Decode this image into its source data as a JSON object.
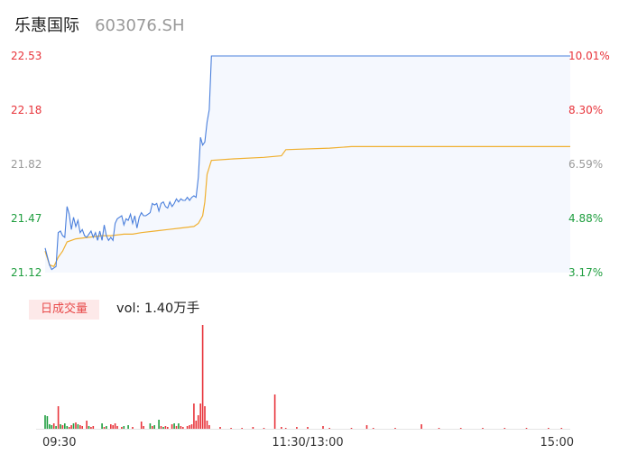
{
  "header": {
    "name": "乐惠国际",
    "code": "603076.SH"
  },
  "volume_badge": "日成交量",
  "volume_text": "vol: 1.40万手",
  "colors": {
    "price_line": "#4a7fdc",
    "avg_line": "#f0b030",
    "area_fill": "#f5f8fe",
    "up": "#e8333a",
    "down": "#1f9e3f",
    "neutral": "#999999"
  },
  "chart_data": {
    "type": "line",
    "title": "",
    "price_axis": {
      "ylim": [
        21.12,
        22.53
      ],
      "ticks": [
        "22.53",
        "22.18",
        "21.82",
        "21.47",
        "21.12"
      ],
      "tick_roles": [
        "up",
        "up",
        "neutral",
        "down",
        "down"
      ]
    },
    "percent_axis": {
      "ticks": [
        "10.01%",
        "8.30%",
        "6.59%",
        "4.88%",
        "3.17%"
      ],
      "tick_roles": [
        "up",
        "up",
        "neutral",
        "down",
        "down"
      ]
    },
    "time_axis": {
      "total_minutes": 240,
      "ticks": [
        {
          "label": "09:30",
          "minute": 0
        },
        {
          "label": "11:30/13:00",
          "minute": 120
        },
        {
          "label": "15:00",
          "minute": 240
        }
      ]
    },
    "price_series": [
      [
        0,
        21.28
      ],
      [
        2,
        21.17
      ],
      [
        3,
        21.14
      ],
      [
        5,
        21.16
      ],
      [
        6,
        21.38
      ],
      [
        7,
        21.39
      ],
      [
        8,
        21.36
      ],
      [
        9,
        21.35
      ],
      [
        10,
        21.55
      ],
      [
        11,
        21.5
      ],
      [
        12,
        21.4
      ],
      [
        13,
        21.48
      ],
      [
        14,
        21.42
      ],
      [
        15,
        21.46
      ],
      [
        16,
        21.38
      ],
      [
        17,
        21.4
      ],
      [
        18,
        21.36
      ],
      [
        19,
        21.35
      ],
      [
        20,
        21.37
      ],
      [
        21,
        21.39
      ],
      [
        22,
        21.35
      ],
      [
        23,
        21.38
      ],
      [
        24,
        21.33
      ],
      [
        25,
        21.39
      ],
      [
        26,
        21.33
      ],
      [
        27,
        21.43
      ],
      [
        28,
        21.36
      ],
      [
        29,
        21.33
      ],
      [
        30,
        21.35
      ],
      [
        31,
        21.33
      ],
      [
        32,
        21.44
      ],
      [
        33,
        21.47
      ],
      [
        34,
        21.48
      ],
      [
        35,
        21.49
      ],
      [
        36,
        21.43
      ],
      [
        37,
        21.47
      ],
      [
        38,
        21.46
      ],
      [
        39,
        21.5
      ],
      [
        40,
        21.44
      ],
      [
        41,
        21.49
      ],
      [
        42,
        21.41
      ],
      [
        43,
        21.48
      ],
      [
        44,
        21.51
      ],
      [
        45,
        21.49
      ],
      [
        46,
        21.49
      ],
      [
        47,
        21.5
      ],
      [
        48,
        21.51
      ],
      [
        49,
        21.57
      ],
      [
        50,
        21.56
      ],
      [
        51,
        21.57
      ],
      [
        52,
        21.52
      ],
      [
        53,
        21.57
      ],
      [
        54,
        21.58
      ],
      [
        55,
        21.55
      ],
      [
        56,
        21.54
      ],
      [
        57,
        21.58
      ],
      [
        58,
        21.55
      ],
      [
        59,
        21.57
      ],
      [
        60,
        21.6
      ],
      [
        61,
        21.58
      ],
      [
        62,
        21.6
      ],
      [
        63,
        21.59
      ],
      [
        64,
        21.59
      ],
      [
        65,
        21.61
      ],
      [
        66,
        21.59
      ],
      [
        67,
        21.61
      ],
      [
        68,
        21.62
      ],
      [
        69,
        21.61
      ],
      [
        70,
        21.74
      ],
      [
        71,
        22.0
      ],
      [
        72,
        21.95
      ],
      [
        73,
        21.97
      ],
      [
        74,
        22.1
      ],
      [
        75,
        22.18
      ],
      [
        76,
        22.53
      ],
      [
        100,
        22.53
      ],
      [
        130,
        22.53
      ],
      [
        160,
        22.53
      ],
      [
        200,
        22.53
      ],
      [
        240,
        22.53
      ]
    ],
    "avg_series": [
      [
        0,
        21.26
      ],
      [
        2,
        21.17
      ],
      [
        4,
        21.16
      ],
      [
        6,
        21.22
      ],
      [
        8,
        21.26
      ],
      [
        10,
        21.32
      ],
      [
        14,
        21.34
      ],
      [
        20,
        21.35
      ],
      [
        26,
        21.36
      ],
      [
        30,
        21.36
      ],
      [
        36,
        21.37
      ],
      [
        40,
        21.37
      ],
      [
        44,
        21.38
      ],
      [
        50,
        21.39
      ],
      [
        56,
        21.4
      ],
      [
        62,
        21.41
      ],
      [
        68,
        21.42
      ],
      [
        70,
        21.44
      ],
      [
        72,
        21.49
      ],
      [
        73,
        21.58
      ],
      [
        74,
        21.76
      ],
      [
        76,
        21.85
      ],
      [
        86,
        21.86
      ],
      [
        100,
        21.87
      ],
      [
        108,
        21.88
      ],
      [
        110,
        21.92
      ],
      [
        130,
        21.93
      ],
      [
        140,
        21.94
      ],
      [
        150,
        21.94
      ],
      [
        180,
        21.94
      ],
      [
        210,
        21.94
      ],
      [
        240,
        21.94
      ]
    ],
    "volume_series": {
      "ymax": 115,
      "bars": [
        [
          0,
          15,
          "down"
        ],
        [
          1,
          14,
          "down"
        ],
        [
          2,
          5,
          "down"
        ],
        [
          3,
          4,
          "down"
        ],
        [
          4,
          6,
          "up"
        ],
        [
          5,
          3,
          "down"
        ],
        [
          6,
          25,
          "up"
        ],
        [
          7,
          5,
          "down"
        ],
        [
          8,
          4,
          "up"
        ],
        [
          9,
          6,
          "down"
        ],
        [
          10,
          3,
          "down"
        ],
        [
          11,
          2,
          "up"
        ],
        [
          12,
          4,
          "up"
        ],
        [
          13,
          6,
          "down"
        ],
        [
          14,
          7,
          "up"
        ],
        [
          15,
          5,
          "down"
        ],
        [
          16,
          4,
          "up"
        ],
        [
          17,
          3,
          "up"
        ],
        [
          19,
          9,
          "up"
        ],
        [
          20,
          3,
          "down"
        ],
        [
          21,
          2,
          "up"
        ],
        [
          22,
          3,
          "up"
        ],
        [
          26,
          6,
          "down"
        ],
        [
          27,
          2,
          "up"
        ],
        [
          28,
          3,
          "down"
        ],
        [
          30,
          5,
          "up"
        ],
        [
          31,
          4,
          "up"
        ],
        [
          32,
          6,
          "up"
        ],
        [
          33,
          3,
          "up"
        ],
        [
          35,
          2,
          "up"
        ],
        [
          36,
          3,
          "down"
        ],
        [
          38,
          4,
          "down"
        ],
        [
          40,
          2,
          "up"
        ],
        [
          44,
          8,
          "up"
        ],
        [
          45,
          3,
          "up"
        ],
        [
          48,
          6,
          "down"
        ],
        [
          49,
          3,
          "up"
        ],
        [
          50,
          4,
          "down"
        ],
        [
          52,
          10,
          "down"
        ],
        [
          53,
          3,
          "up"
        ],
        [
          54,
          2,
          "down"
        ],
        [
          55,
          3,
          "up"
        ],
        [
          56,
          2,
          "up"
        ],
        [
          58,
          5,
          "up"
        ],
        [
          59,
          6,
          "down"
        ],
        [
          60,
          3,
          "up"
        ],
        [
          61,
          6,
          "down"
        ],
        [
          62,
          3,
          "up"
        ],
        [
          63,
          2,
          "up"
        ],
        [
          65,
          3,
          "up"
        ],
        [
          66,
          4,
          "up"
        ],
        [
          67,
          5,
          "up"
        ],
        [
          68,
          28,
          "up"
        ],
        [
          69,
          9,
          "up"
        ],
        [
          70,
          15,
          "up"
        ],
        [
          71,
          28,
          "up"
        ],
        [
          72,
          115,
          "up"
        ],
        [
          73,
          25,
          "up"
        ],
        [
          74,
          9,
          "up"
        ],
        [
          75,
          4,
          "up"
        ],
        [
          80,
          2,
          "up"
        ],
        [
          85,
          1,
          "up"
        ],
        [
          90,
          1,
          "up"
        ],
        [
          95,
          2,
          "up"
        ],
        [
          100,
          1,
          "up"
        ],
        [
          105,
          38,
          "up"
        ],
        [
          108,
          2,
          "up"
        ],
        [
          110,
          1,
          "up"
        ],
        [
          115,
          2,
          "up"
        ],
        [
          120,
          2,
          "up"
        ],
        [
          127,
          3,
          "up"
        ],
        [
          130,
          1,
          "up"
        ],
        [
          140,
          1,
          "up"
        ],
        [
          147,
          4,
          "up"
        ],
        [
          150,
          1,
          "up"
        ],
        [
          160,
          1,
          "up"
        ],
        [
          172,
          5,
          "up"
        ],
        [
          180,
          1,
          "up"
        ],
        [
          190,
          1,
          "up"
        ],
        [
          200,
          1,
          "up"
        ],
        [
          210,
          1,
          "up"
        ],
        [
          220,
          1,
          "up"
        ],
        [
          230,
          1,
          "up"
        ],
        [
          236,
          1,
          "up"
        ]
      ]
    }
  }
}
